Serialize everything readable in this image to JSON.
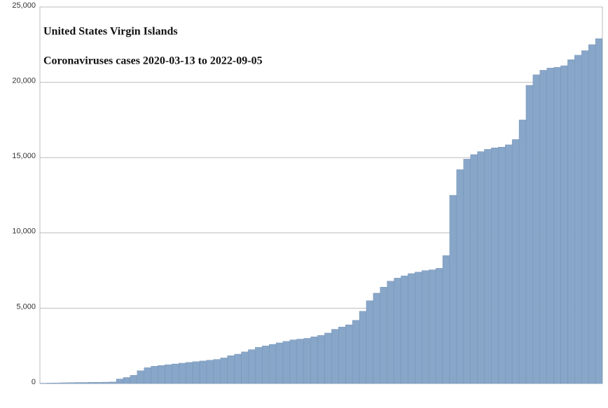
{
  "chart_data": {
    "type": "bar",
    "title": "United States Virgin Islands",
    "subtitle": "Coronaviruses cases 2020-03-13 to 2022-09-05",
    "categories": [
      null,
      null,
      null,
      null,
      null,
      null,
      null,
      null,
      null,
      null,
      null,
      null,
      null,
      null,
      null,
      null,
      null,
      null,
      null,
      null,
      null,
      null,
      null,
      null,
      null,
      null,
      null,
      null,
      null,
      null,
      null,
      null,
      null,
      null,
      null,
      null,
      null,
      null,
      null,
      null,
      null,
      null,
      null,
      null,
      null,
      null,
      null,
      null,
      null,
      null,
      null,
      null,
      null,
      null,
      null,
      null,
      null,
      null,
      null,
      null,
      null,
      null,
      null,
      null,
      null,
      null,
      null,
      null,
      null,
      null,
      null,
      null,
      null,
      null,
      null,
      null,
      null,
      null,
      null,
      null,
      null
    ],
    "values": [
      20,
      30,
      40,
      50,
      60,
      70,
      70,
      80,
      80,
      90,
      100,
      300,
      400,
      550,
      850,
      1050,
      1150,
      1200,
      1250,
      1300,
      1350,
      1400,
      1450,
      1500,
      1550,
      1600,
      1700,
      1850,
      1950,
      2100,
      2250,
      2400,
      2500,
      2600,
      2700,
      2800,
      2900,
      2950,
      3000,
      3100,
      3200,
      3350,
      3600,
      3750,
      3900,
      4200,
      4800,
      5500,
      6000,
      6400,
      6800,
      7000,
      7150,
      7300,
      7400,
      7500,
      7550,
      7650,
      8500,
      12500,
      14200,
      14900,
      15200,
      15400,
      15550,
      15650,
      15700,
      15850,
      16200,
      17500,
      19800,
      20500,
      20800,
      20950,
      21000,
      21100,
      21500,
      21800,
      22100,
      22500,
      22900
    ],
    "color": "#88a6c8",
    "ylim": [
      0,
      25000
    ],
    "yticks": [
      0,
      {
        "value": 5000,
        "label": "5,000"
      },
      {
        "value": 10000,
        "label": "10,000"
      },
      {
        "value": 15000,
        "label": "15,000"
      },
      {
        "value": 20000,
        "label": "20,000"
      },
      {
        "value": 25000,
        "label": "25,000"
      }
    ],
    "grid": true
  }
}
